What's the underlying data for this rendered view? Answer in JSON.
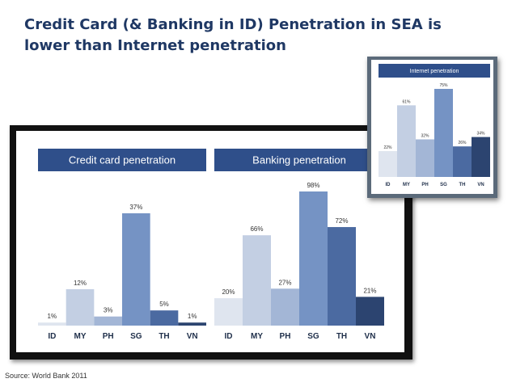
{
  "title": "Credit Card (& Banking in ID) Penetration in SEA is lower than Internet penetration",
  "source": "Source: World Bank 2011",
  "colors": {
    "header": "#2f4f8a",
    "title": "#1f3864",
    "bars": [
      "#dfe5ef",
      "#c3cfe3",
      "#a3b6d6",
      "#7593c4",
      "#4b6aa1",
      "#2c4470"
    ]
  },
  "chart_data": [
    {
      "type": "bar",
      "title": "Credit card penetration",
      "categories": [
        "ID",
        "MY",
        "PH",
        "SG",
        "TH",
        "VN"
      ],
      "values": [
        1,
        12,
        3,
        37,
        5,
        1
      ],
      "value_labels": [
        "1%",
        "12%",
        "3%",
        "37%",
        "5%",
        "1%"
      ],
      "grid": false
    },
    {
      "type": "bar",
      "title": "Banking penetration",
      "categories": [
        "ID",
        "MY",
        "PH",
        "SG",
        "TH",
        "VN"
      ],
      "values": [
        20,
        66,
        27,
        98,
        72,
        21
      ],
      "value_labels": [
        "20%",
        "66%",
        "27%",
        "98%",
        "72%",
        "21%"
      ],
      "grid": false
    },
    {
      "type": "bar",
      "title": "Internet penetration",
      "categories": [
        "ID",
        "MY",
        "PH",
        "SG",
        "TH",
        "VN"
      ],
      "values": [
        22,
        61,
        32,
        75,
        26,
        34
      ],
      "value_labels": [
        "22%",
        "61%",
        "32%",
        "75%",
        "26%",
        "34%"
      ],
      "grid": false
    }
  ]
}
